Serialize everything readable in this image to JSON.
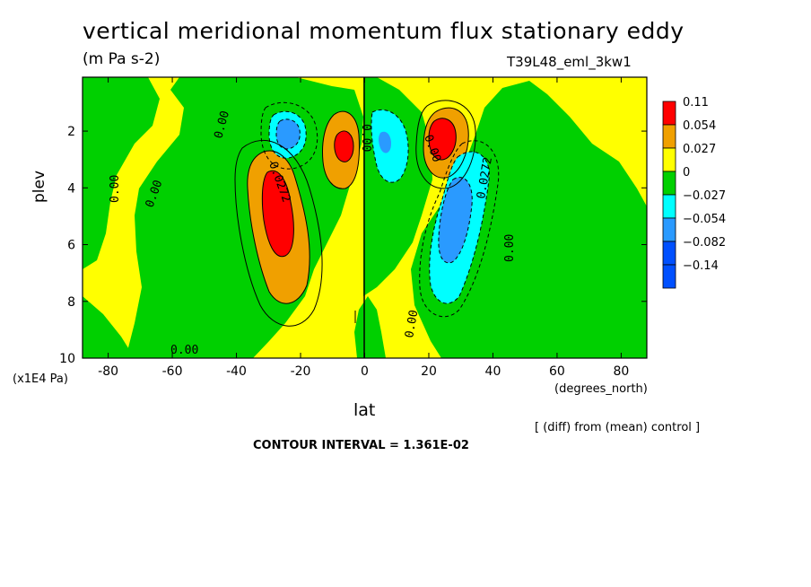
{
  "header": {
    "title": "vertical meridional momentum flux stationary eddy",
    "units": "(m Pa s-2)",
    "run_name": "T39L48_eml_3kw1"
  },
  "footer": {
    "diff_note": "[ (diff) from (mean) control ]",
    "contour_interval": "CONTOUR INTERVAL = 1.361E-02"
  },
  "chart_data": {
    "type": "heatmap",
    "title": "vertical meridional momentum flux stationary eddy",
    "subtitle": "(m Pa s-2)",
    "xlabel": "lat",
    "xunits": "(degrees_north)",
    "ylabel": "plev",
    "yunits": "(x1E4 Pa)",
    "xlim": [
      -88,
      88
    ],
    "ylim": [
      10,
      0.1
    ],
    "x_ticks": [
      -80,
      -60,
      -40,
      -20,
      0,
      20,
      40,
      60,
      80
    ],
    "x_tick_labels": [
      "-80",
      "-60",
      "-40",
      "-20",
      "0",
      "20",
      "40",
      "60",
      "80"
    ],
    "y_ticks": [
      2,
      4,
      6,
      8,
      10
    ],
    "y_tick_labels": [
      "2",
      "4",
      "6",
      "8",
      "10"
    ],
    "colorbar": {
      "labels": [
        "0.11",
        "0.054",
        "0.027",
        "0",
        "−0.027",
        "−0.054",
        "−0.082",
        "−0.14"
      ],
      "colors": [
        "#ff0000",
        "#f0a000",
        "#ffff00",
        "#00d000",
        "#00ffff",
        "#2a9aff",
        "#0050ff",
        "#0050ff"
      ]
    },
    "contour_labels": [
      "0.00",
      "0.00",
      "0.00",
      "0.00",
      "0.00",
      "0.0272",
      "0.0272",
      "0.00",
      "0.00",
      "0.00"
    ],
    "features": [
      {
        "name": "positive max",
        "lat": -25,
        "plev": 5.0,
        "value": 0.11
      },
      {
        "name": "negative min",
        "lat": -27,
        "plev": 2.3,
        "value": -0.082
      },
      {
        "name": "positive max",
        "lat": -6,
        "plev": 2.5,
        "value": 0.054
      },
      {
        "name": "negative min",
        "lat": 8,
        "plev": 2.5,
        "value": -0.054
      },
      {
        "name": "positive max",
        "lat": 24,
        "plev": 2.4,
        "value": 0.11
      },
      {
        "name": "negative min",
        "lat": 28,
        "plev": 5.0,
        "value": -0.082
      }
    ]
  }
}
